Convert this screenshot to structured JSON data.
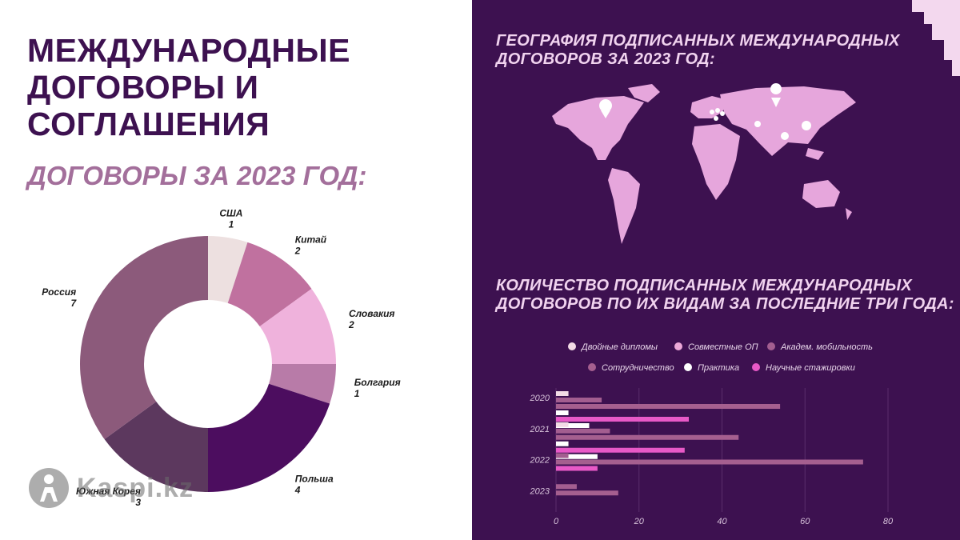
{
  "left": {
    "title": "МЕЖДУНАРОДНЫЕ ДОГОВОРЫ И СОГЛАШЕНИЯ",
    "subtitle": "ДОГОВОРЫ ЗА 2023 ГОД:"
  },
  "right": {
    "map_title": "ГЕОГРАФИЯ ПОДПИСАННЫХ МЕЖДУНАРОДНЫХ ДОГОВОРОВ ЗА 2023 ГОД:",
    "bars_title": "КОЛИЧЕСТВО ПОДПИСАННЫХ МЕЖДУНАРОДНЫХ ДОГОВОРОВ  ПО ИХ ВИДАМ ЗА ПОСЛЕДНИЕ ТРИ ГОДА:"
  },
  "watermark": "Kaspi.kz",
  "chart_data": [
    {
      "type": "pie",
      "title": "ДОГОВОРЫ ЗА 2023 ГОД:",
      "donut": true,
      "slices": [
        {
          "label": "США",
          "value": 1,
          "color": "#ede0e0"
        },
        {
          "label": "Китай",
          "value": 2,
          "color": "#c0719f"
        },
        {
          "label": "Словакия",
          "value": 2,
          "color": "#efb2dc"
        },
        {
          "label": "Болгария",
          "value": 1,
          "color": "#b87ba8"
        },
        {
          "label": "Польша",
          "value": 4,
          "color": "#4c0d5f"
        },
        {
          "label": "Южная Корея",
          "value": 3,
          "color": "#5c385e"
        },
        {
          "label": "Россия",
          "value": 7,
          "color": "#8c5a7b"
        }
      ]
    },
    {
      "type": "bar",
      "orientation": "horizontal",
      "title": "КОЛИЧЕСТВО ПОДПИСАННЫХ МЕЖДУНАРОДНЫХ ДОГОВОРОВ  ПО ИХ ВИДАМ ЗА ПОСЛЕДНИЕ ТРИ ГОДА:",
      "categories": [
        "2020",
        "2021",
        "2022",
        "2023"
      ],
      "xlim": [
        0,
        80
      ],
      "xticks": [
        0,
        20,
        40,
        60,
        80
      ],
      "series": [
        {
          "name": "Двойные дипломы",
          "color": "#f3dbe6",
          "values": [
            3,
            3,
            0,
            0
          ]
        },
        {
          "name": "Совместные ОП",
          "color": "#eca9d8",
          "values": [
            0,
            0,
            0,
            0
          ]
        },
        {
          "name": "Академ. мобильность",
          "color": "#a35e90",
          "values": [
            11,
            13,
            3,
            5
          ]
        },
        {
          "name": "Сотрудничество",
          "color": "#a55f8f",
          "values": [
            54,
            44,
            74,
            15
          ]
        },
        {
          "name": "Практика",
          "color": "#ffffff",
          "values": [
            3,
            3,
            0,
            0
          ]
        },
        {
          "name": "Научные стажировки",
          "color": "#e859c7",
          "values": [
            32,
            31,
            10,
            0
          ]
        }
      ],
      "extra_bars": [
        {
          "category": "2020",
          "value": 8,
          "color": "#ffffff"
        },
        {
          "category": "2021",
          "value": 10,
          "color": "#ffffff"
        }
      ]
    }
  ]
}
